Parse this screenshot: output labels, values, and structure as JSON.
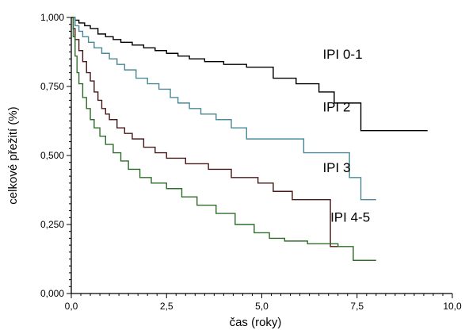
{
  "chart_data": {
    "type": "line",
    "step": true,
    "xlabel": "čas (roky)",
    "ylabel": "celkové přežití (%)",
    "xlim": [
      0,
      10
    ],
    "ylim": [
      0,
      1
    ],
    "x_ticks": [
      0,
      2.5,
      5,
      7.5,
      10
    ],
    "x_tick_labels": [
      "0,0",
      "2,5",
      "5,0",
      "7,5",
      "10,0"
    ],
    "y_ticks": [
      0,
      0.25,
      0.5,
      0.75,
      1
    ],
    "y_tick_labels": [
      "0,000",
      "0,250",
      "0,500",
      "0,750",
      "1,000"
    ],
    "grid": false,
    "legend": "none",
    "series": [
      {
        "name": "IPI 0-1",
        "color": "#000000",
        "x": [
          0,
          0.1,
          0.2,
          0.35,
          0.5,
          0.7,
          0.9,
          1.1,
          1.3,
          1.6,
          1.9,
          2.2,
          2.5,
          2.8,
          3.1,
          3.5,
          4.0,
          4.6,
          5.3,
          5.9,
          6.5,
          6.9,
          7.3,
          7.6,
          8.2,
          9.35
        ],
        "y": [
          1.0,
          0.99,
          0.98,
          0.97,
          0.96,
          0.94,
          0.93,
          0.92,
          0.91,
          0.9,
          0.89,
          0.88,
          0.87,
          0.86,
          0.85,
          0.84,
          0.83,
          0.82,
          0.78,
          0.76,
          0.73,
          0.69,
          0.69,
          0.59,
          0.59,
          0.59
        ]
      },
      {
        "name": "IPI 2",
        "color": "#4a8a98",
        "x": [
          0,
          0.1,
          0.2,
          0.3,
          0.45,
          0.6,
          0.8,
          1.0,
          1.2,
          1.4,
          1.7,
          2.0,
          2.3,
          2.6,
          2.8,
          3.1,
          3.4,
          3.8,
          4.2,
          4.6,
          5.3,
          6.1,
          6.7,
          7.3,
          7.45,
          7.6,
          8.0
        ],
        "y": [
          1.0,
          0.97,
          0.95,
          0.93,
          0.91,
          0.89,
          0.87,
          0.85,
          0.83,
          0.81,
          0.78,
          0.76,
          0.74,
          0.71,
          0.69,
          0.67,
          0.65,
          0.63,
          0.6,
          0.56,
          0.56,
          0.51,
          0.51,
          0.42,
          0.42,
          0.34,
          0.34
        ]
      },
      {
        "name": "IPI 3",
        "color": "#4a1a1a",
        "x": [
          0,
          0.05,
          0.1,
          0.2,
          0.3,
          0.4,
          0.5,
          0.6,
          0.7,
          0.8,
          0.9,
          1.0,
          1.2,
          1.4,
          1.6,
          1.9,
          2.2,
          2.5,
          3.0,
          3.6,
          4.2,
          4.9,
          5.3,
          5.8,
          6.2,
          6.8,
          7.0
        ],
        "y": [
          1.0,
          0.96,
          0.92,
          0.88,
          0.84,
          0.8,
          0.77,
          0.73,
          0.7,
          0.67,
          0.65,
          0.63,
          0.6,
          0.58,
          0.56,
          0.53,
          0.51,
          0.49,
          0.47,
          0.45,
          0.42,
          0.4,
          0.37,
          0.34,
          0.34,
          0.17,
          0.17
        ]
      },
      {
        "name": "IPI 4-5",
        "color": "#2e6e2a",
        "x": [
          0,
          0.05,
          0.1,
          0.15,
          0.2,
          0.3,
          0.4,
          0.5,
          0.6,
          0.75,
          0.9,
          1.1,
          1.3,
          1.5,
          1.8,
          2.1,
          2.5,
          2.9,
          3.3,
          3.8,
          4.3,
          4.8,
          5.2,
          5.6,
          6.2,
          7.0,
          7.4,
          8.0
        ],
        "y": [
          1.0,
          0.93,
          0.86,
          0.8,
          0.76,
          0.71,
          0.67,
          0.63,
          0.6,
          0.57,
          0.54,
          0.51,
          0.48,
          0.45,
          0.42,
          0.4,
          0.38,
          0.35,
          0.32,
          0.29,
          0.25,
          0.22,
          0.2,
          0.19,
          0.18,
          0.17,
          0.12,
          0.12
        ]
      }
    ],
    "annotations": [
      {
        "text": "IPI 0-1",
        "x": 6.6,
        "y": 0.85
      },
      {
        "text": "IPI 2",
        "x": 6.6,
        "y": 0.66
      },
      {
        "text": "IPI 3",
        "x": 6.6,
        "y": 0.44
      },
      {
        "text": "IPI 4-5",
        "x": 6.8,
        "y": 0.26
      }
    ]
  }
}
